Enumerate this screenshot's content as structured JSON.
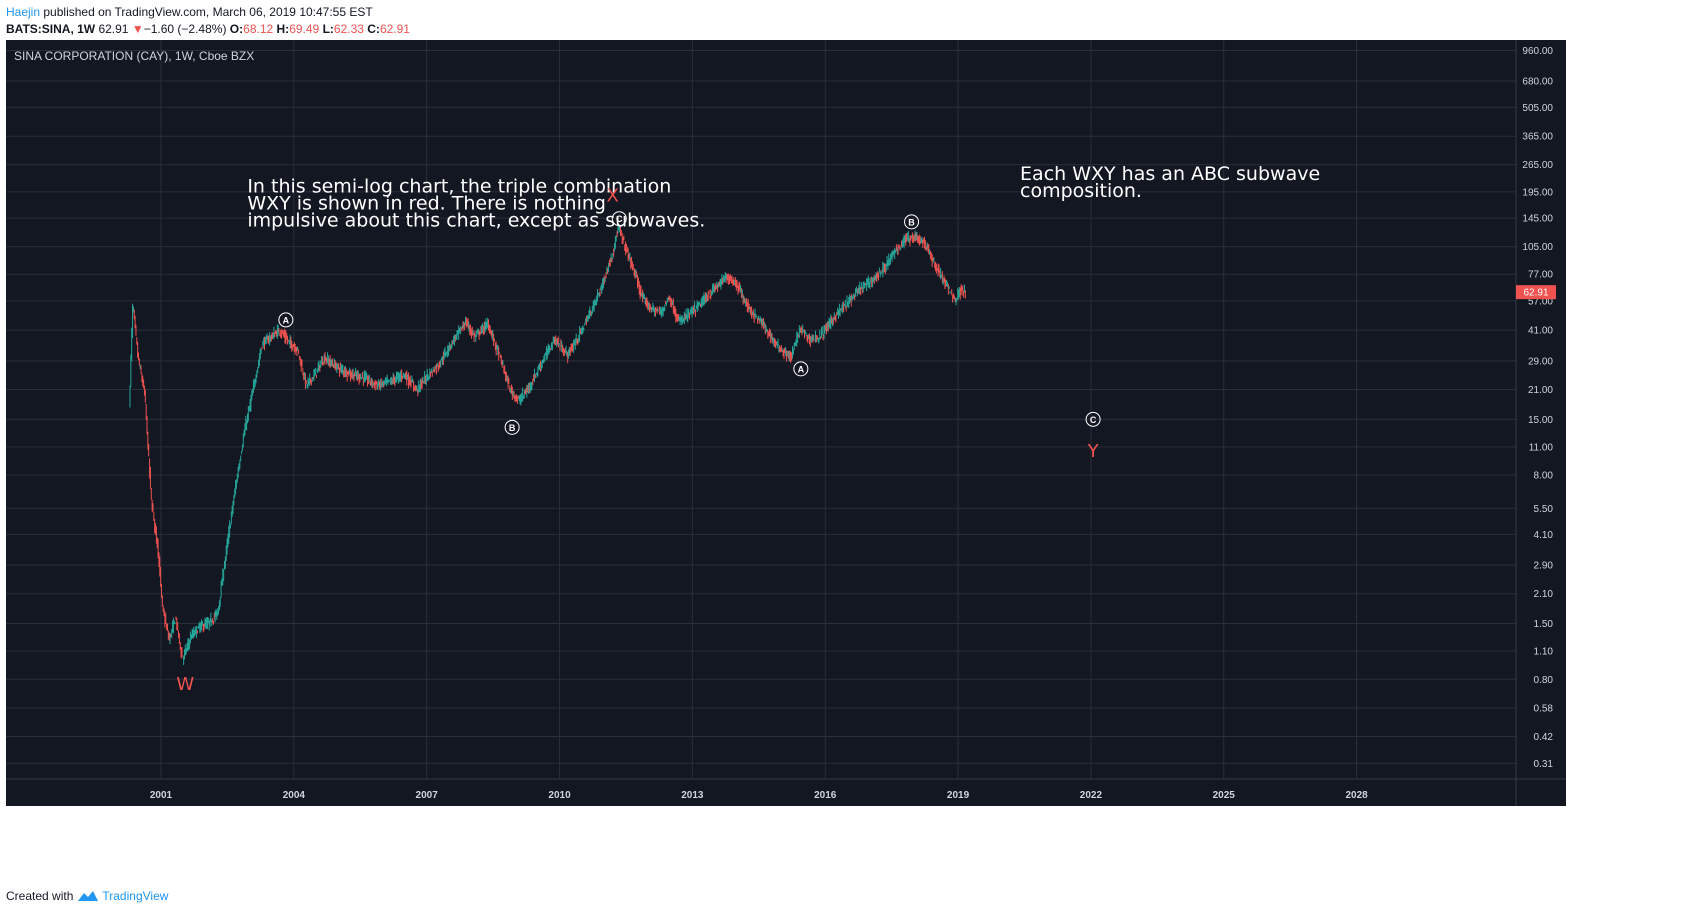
{
  "header": {
    "author": "Haejin",
    "published": "published on TradingView.com, March 06, 2019 10:47:55 EST",
    "symbol": "BATS:SINA, 1W",
    "last": "62.91",
    "down_arrow": "▼",
    "change": "−1.60 (−2.48%)",
    "o_label": "O:",
    "o_val": "68.12",
    "h_label": "H:",
    "h_val": "69.49",
    "l_label": "L:",
    "l_val": "62.33",
    "c_label": "C:",
    "c_val": "62.91"
  },
  "footer": {
    "created_with": "Created with",
    "brand": "TradingView"
  },
  "colors": {
    "background": "#131722",
    "grid": "#2a2e39",
    "text": "#d1d4dc",
    "up": "#26a69a",
    "down": "#ef5350",
    "wave_label": "#ef5350",
    "price_tag": "#ef5350"
  },
  "chart_data": {
    "type": "candlestick",
    "title": "SINA CORPORATION (CAY), 1W, Cboe BZX",
    "y_scale": "log",
    "ylim": [
      0.26,
      1080
    ],
    "xlim": [
      1997.5,
      2031.6
    ],
    "x_ticks": [
      "2001",
      "2004",
      "2007",
      "2010",
      "2013",
      "2016",
      "2019",
      "2022",
      "2025",
      "2028"
    ],
    "y_ticks": [
      "960.00",
      "680.00",
      "505.00",
      "365.00",
      "265.00",
      "195.00",
      "145.00",
      "105.00",
      "77.00",
      "57.00",
      "41.00",
      "29.00",
      "21.00",
      "15.00",
      "11.00",
      "8.00",
      "5.50",
      "4.10",
      "2.90",
      "2.10",
      "1.50",
      "1.10",
      "0.80",
      "0.58",
      "0.42",
      "0.31"
    ],
    "last_price": "62.91",
    "price_path": [
      [
        2000.3,
        17
      ],
      [
        2000.38,
        55
      ],
      [
        2000.5,
        30
      ],
      [
        2000.65,
        20
      ],
      [
        2000.8,
        6
      ],
      [
        2000.95,
        3.5
      ],
      [
        2001.05,
        1.8
      ],
      [
        2001.2,
        1.25
      ],
      [
        2001.35,
        1.6
      ],
      [
        2001.5,
        1.0
      ],
      [
        2001.7,
        1.3
      ],
      [
        2001.9,
        1.45
      ],
      [
        2002.1,
        1.5
      ],
      [
        2002.3,
        1.7
      ],
      [
        2002.5,
        3.5
      ],
      [
        2002.7,
        7
      ],
      [
        2002.9,
        13
      ],
      [
        2003.1,
        21
      ],
      [
        2003.3,
        35
      ],
      [
        2003.5,
        38
      ],
      [
        2003.7,
        41
      ],
      [
        2003.9,
        36
      ],
      [
        2004.1,
        33
      ],
      [
        2004.3,
        22
      ],
      [
        2004.5,
        25
      ],
      [
        2004.7,
        30
      ],
      [
        2005.0,
        27
      ],
      [
        2005.3,
        25
      ],
      [
        2005.6,
        24
      ],
      [
        2005.9,
        22
      ],
      [
        2006.2,
        23
      ],
      [
        2006.5,
        25
      ],
      [
        2006.8,
        21
      ],
      [
        2007.0,
        24
      ],
      [
        2007.3,
        28
      ],
      [
        2007.6,
        36
      ],
      [
        2007.9,
        45
      ],
      [
        2008.1,
        38
      ],
      [
        2008.4,
        44
      ],
      [
        2008.7,
        29
      ],
      [
        2008.9,
        21
      ],
      [
        2009.1,
        18.5
      ],
      [
        2009.3,
        21
      ],
      [
        2009.6,
        28
      ],
      [
        2009.9,
        37
      ],
      [
        2010.2,
        31
      ],
      [
        2010.5,
        40
      ],
      [
        2010.8,
        55
      ],
      [
        2011.0,
        70
      ],
      [
        2011.2,
        95
      ],
      [
        2011.35,
        130
      ],
      [
        2011.5,
        105
      ],
      [
        2011.7,
        80
      ],
      [
        2011.9,
        58
      ],
      [
        2012.1,
        52
      ],
      [
        2012.3,
        50
      ],
      [
        2012.5,
        60
      ],
      [
        2012.7,
        45
      ],
      [
        2013.0,
        50
      ],
      [
        2013.2,
        55
      ],
      [
        2013.5,
        65
      ],
      [
        2013.8,
        75
      ],
      [
        2014.0,
        70
      ],
      [
        2014.3,
        52
      ],
      [
        2014.6,
        44
      ],
      [
        2014.9,
        35
      ],
      [
        2015.1,
        32
      ],
      [
        2015.25,
        30
      ],
      [
        2015.45,
        42
      ],
      [
        2015.65,
        37
      ],
      [
        2015.9,
        38
      ],
      [
        2016.2,
        47
      ],
      [
        2016.5,
        55
      ],
      [
        2016.8,
        65
      ],
      [
        2017.0,
        70
      ],
      [
        2017.3,
        80
      ],
      [
        2017.6,
        100
      ],
      [
        2017.85,
        115
      ],
      [
        2018.05,
        118
      ],
      [
        2018.25,
        110
      ],
      [
        2018.5,
        85
      ],
      [
        2018.75,
        68
      ],
      [
        2018.95,
        58
      ],
      [
        2019.1,
        66
      ],
      [
        2019.18,
        63
      ]
    ],
    "wave_labels": [
      {
        "text": "W",
        "x": 2001.55,
        "price": 0.71
      },
      {
        "text": "X",
        "x": 2011.2,
        "price": 175
      },
      {
        "text": "Y",
        "x": 2022.05,
        "price": 9.8
      }
    ],
    "subwave_labels": [
      {
        "text": "A",
        "x": 2003.82,
        "price": 46
      },
      {
        "text": "B",
        "x": 2008.93,
        "price": 13.7
      },
      {
        "text": "C",
        "x": 2011.35,
        "price": 144
      },
      {
        "text": "A",
        "x": 2015.45,
        "price": 26.5
      },
      {
        "text": "B",
        "x": 2017.95,
        "price": 139
      },
      {
        "text": "C",
        "x": 2022.05,
        "price": 15.0
      }
    ],
    "annotations": [
      {
        "lines": [
          "In this semi-log chart, the triple combination",
          "WXY is shown in red. There is nothing",
          "impulsive about this chart, except as subwaves."
        ],
        "x": 2002.95,
        "price": 193
      },
      {
        "lines": [
          "Each WXY has an ABC subwave",
          "composition."
        ],
        "x": 2020.4,
        "price": 223
      }
    ]
  }
}
